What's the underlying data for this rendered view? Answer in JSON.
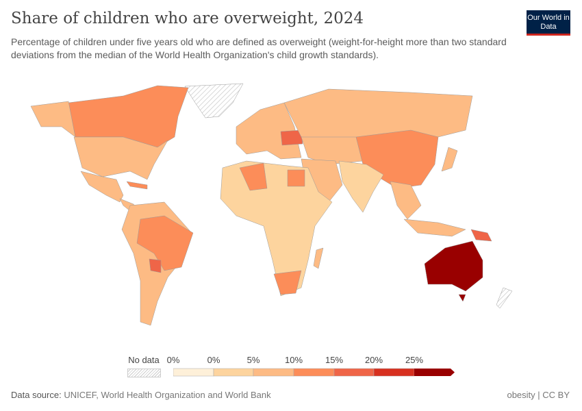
{
  "header": {
    "title": "Share of children who are overweight, 2024",
    "subtitle": "Percentage of children under five years old who are defined as overweight (weight-for-height more than two standard deviations from the median of the World Health Organization's child growth standards).",
    "logo": "Our World in Data"
  },
  "chart_data": {
    "type": "choropleth map",
    "title": "Share of children who are overweight, 2024",
    "legend": {
      "no_data_label": "No data",
      "bins": [
        {
          "label_start": "0%",
          "label_end": "0%",
          "color": "#fef0d9"
        },
        {
          "label_end": "5%",
          "color": "#fdd49e"
        },
        {
          "label_end": "10%",
          "color": "#fdbb84"
        },
        {
          "label_end": "15%",
          "color": "#fc8d59"
        },
        {
          "label_end": "20%",
          "color": "#ef6548"
        },
        {
          "label_end": "25%",
          "color": "#d7301f"
        },
        {
          "label_end": ">25%",
          "color": "#990000"
        }
      ],
      "tick_labels": [
        "0%",
        "0%",
        "5%",
        "10%",
        "15%",
        "20%",
        "25%"
      ]
    }
  },
  "footer": {
    "source_label": "Data source:",
    "source": "UNICEF, World Health Organization and World Bank",
    "right": "obesity | CC BY"
  }
}
